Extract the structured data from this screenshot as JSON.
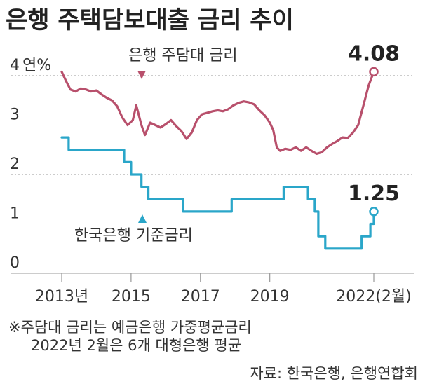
{
  "title": "은행 주택담보대출 금리 추이",
  "notes": [
    "※주담대 금리는 예금은행 가중평균금리",
    "2022년 2월은 6개 대형은행 평균"
  ],
  "source": "자료: 한국은행, 은행연합회",
  "colors": {
    "mortgage": "#b8506c",
    "base": "#2aa6c9",
    "grid": "#999999"
  },
  "chart_data": {
    "type": "line",
    "y_unit": "연%",
    "ylim": [
      0,
      4.4
    ],
    "y_ticks": [
      0,
      1,
      2,
      3,
      4
    ],
    "x_ticks": [
      {
        "x": 2013.0,
        "label": "2013년"
      },
      {
        "x": 2015.0,
        "label": "2015"
      },
      {
        "x": 2017.0,
        "label": "2017"
      },
      {
        "x": 2019.0,
        "label": "2019"
      },
      {
        "x": 2022.0,
        "label": "2022(2월)"
      }
    ],
    "series": [
      {
        "name": "은행 주담대 금리",
        "key": "mortgage",
        "end_label": "4.08",
        "points": [
          [
            2013.0,
            4.08
          ],
          [
            2013.12,
            3.9
          ],
          [
            2013.25,
            3.72
          ],
          [
            2013.4,
            3.68
          ],
          [
            2013.55,
            3.74
          ],
          [
            2013.7,
            3.72
          ],
          [
            2013.85,
            3.68
          ],
          [
            2014.0,
            3.7
          ],
          [
            2014.15,
            3.62
          ],
          [
            2014.3,
            3.55
          ],
          [
            2014.45,
            3.5
          ],
          [
            2014.6,
            3.38
          ],
          [
            2014.75,
            3.15
          ],
          [
            2014.9,
            3.0
          ],
          [
            2015.05,
            3.1
          ],
          [
            2015.15,
            3.4
          ],
          [
            2015.3,
            3.0
          ],
          [
            2015.4,
            2.8
          ],
          [
            2015.55,
            3.05
          ],
          [
            2015.7,
            3.0
          ],
          [
            2015.85,
            2.95
          ],
          [
            2016.0,
            3.02
          ],
          [
            2016.15,
            3.1
          ],
          [
            2016.3,
            2.98
          ],
          [
            2016.45,
            2.88
          ],
          [
            2016.6,
            2.72
          ],
          [
            2016.75,
            2.85
          ],
          [
            2016.9,
            3.1
          ],
          [
            2017.05,
            3.22
          ],
          [
            2017.2,
            3.25
          ],
          [
            2017.35,
            3.28
          ],
          [
            2017.5,
            3.3
          ],
          [
            2017.65,
            3.28
          ],
          [
            2017.8,
            3.32
          ],
          [
            2017.95,
            3.4
          ],
          [
            2018.1,
            3.45
          ],
          [
            2018.25,
            3.48
          ],
          [
            2018.4,
            3.46
          ],
          [
            2018.55,
            3.42
          ],
          [
            2018.7,
            3.3
          ],
          [
            2018.85,
            3.2
          ],
          [
            2019.0,
            3.05
          ],
          [
            2019.1,
            2.9
          ],
          [
            2019.2,
            2.55
          ],
          [
            2019.3,
            2.48
          ],
          [
            2019.45,
            2.52
          ],
          [
            2019.6,
            2.5
          ],
          [
            2019.75,
            2.55
          ],
          [
            2019.9,
            2.48
          ],
          [
            2020.05,
            2.55
          ],
          [
            2020.2,
            2.48
          ],
          [
            2020.35,
            2.42
          ],
          [
            2020.5,
            2.45
          ],
          [
            2020.65,
            2.55
          ],
          [
            2020.8,
            2.62
          ],
          [
            2020.95,
            2.68
          ],
          [
            2021.1,
            2.75
          ],
          [
            2021.25,
            2.74
          ],
          [
            2021.4,
            2.85
          ],
          [
            2021.55,
            3.0
          ],
          [
            2021.7,
            3.4
          ],
          [
            2021.85,
            3.8
          ],
          [
            2022.0,
            4.08
          ]
        ]
      },
      {
        "name": "한국은행 기준금리",
        "key": "base",
        "end_label": "1.25",
        "points": [
          [
            2013.0,
            2.75
          ],
          [
            2013.2,
            2.75
          ],
          [
            2013.2,
            2.5
          ],
          [
            2014.8,
            2.5
          ],
          [
            2014.8,
            2.25
          ],
          [
            2015.0,
            2.25
          ],
          [
            2015.0,
            2.0
          ],
          [
            2015.3,
            2.0
          ],
          [
            2015.3,
            1.75
          ],
          [
            2015.5,
            1.75
          ],
          [
            2015.5,
            1.5
          ],
          [
            2016.5,
            1.5
          ],
          [
            2016.5,
            1.25
          ],
          [
            2017.9,
            1.25
          ],
          [
            2017.9,
            1.5
          ],
          [
            2019.4,
            1.5
          ],
          [
            2019.4,
            1.75
          ],
          [
            2020.1,
            1.75
          ],
          [
            2020.1,
            1.5
          ],
          [
            2020.3,
            1.5
          ],
          [
            2020.3,
            1.25
          ],
          [
            2020.4,
            1.25
          ],
          [
            2020.4,
            0.75
          ],
          [
            2020.6,
            0.75
          ],
          [
            2020.6,
            0.5
          ],
          [
            2021.65,
            0.5
          ],
          [
            2021.65,
            0.75
          ],
          [
            2021.9,
            0.75
          ],
          [
            2021.9,
            1.0
          ],
          [
            2022.0,
            1.0
          ],
          [
            2022.0,
            1.25
          ]
        ]
      }
    ]
  }
}
